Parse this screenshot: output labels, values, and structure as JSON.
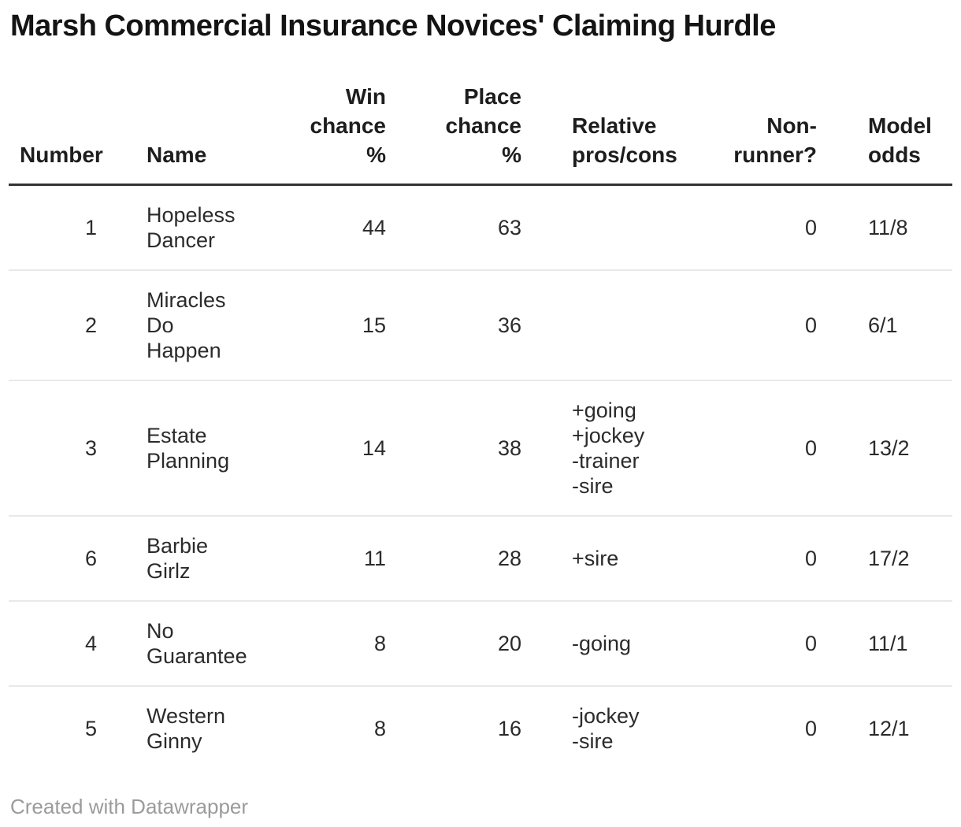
{
  "title": "Marsh Commercial Insurance Novices' Claiming Hurdle",
  "footer": "Created with Datawrapper",
  "colors": {
    "title_text": "#141414",
    "header_text": "#1d1d1d",
    "body_text": "#2b2b2b",
    "header_rule": "#333333",
    "row_rule": "#e9e9e9",
    "footer_text": "#9b9b9b",
    "background": "#ffffff"
  },
  "chart_data": {
    "type": "table",
    "title": "Marsh Commercial Insurance Novices' Claiming Hurdle",
    "columns": [
      {
        "key": "number",
        "label": "Number",
        "align": "right"
      },
      {
        "key": "name",
        "label": "Name",
        "align": "left"
      },
      {
        "key": "win_chance_pct",
        "label": "Win\nchance\n%",
        "align": "right"
      },
      {
        "key": "place_chance_pct",
        "label": "Place\nchance\n%",
        "align": "right"
      },
      {
        "key": "relative_pros_cons",
        "label": "Relative\npros/cons",
        "align": "left"
      },
      {
        "key": "non_runner",
        "label": "Non-\nrunner?",
        "align": "right"
      },
      {
        "key": "model_odds",
        "label": "Model\nodds",
        "align": "left"
      }
    ],
    "rows": [
      {
        "number": "1",
        "name": "Hopeless\nDancer",
        "win_chance_pct": "44",
        "place_chance_pct": "63",
        "relative_pros_cons": "",
        "non_runner": "0",
        "model_odds": "11/8"
      },
      {
        "number": "2",
        "name": "Miracles\nDo\nHappen",
        "win_chance_pct": "15",
        "place_chance_pct": "36",
        "relative_pros_cons": "",
        "non_runner": "0",
        "model_odds": "6/1"
      },
      {
        "number": "3",
        "name": "Estate\nPlanning",
        "win_chance_pct": "14",
        "place_chance_pct": "38",
        "relative_pros_cons": "+going\n+jockey\n-trainer\n-sire",
        "non_runner": "0",
        "model_odds": "13/2"
      },
      {
        "number": "6",
        "name": "Barbie\nGirlz",
        "win_chance_pct": "11",
        "place_chance_pct": "28",
        "relative_pros_cons": "+sire",
        "non_runner": "0",
        "model_odds": "17/2"
      },
      {
        "number": "4",
        "name": "No\nGuarantee",
        "win_chance_pct": "8",
        "place_chance_pct": "20",
        "relative_pros_cons": "-going",
        "non_runner": "0",
        "model_odds": "11/1"
      },
      {
        "number": "5",
        "name": "Western\nGinny",
        "win_chance_pct": "8",
        "place_chance_pct": "16",
        "relative_pros_cons": "-jockey\n-sire",
        "non_runner": "0",
        "model_odds": "12/1"
      }
    ]
  }
}
